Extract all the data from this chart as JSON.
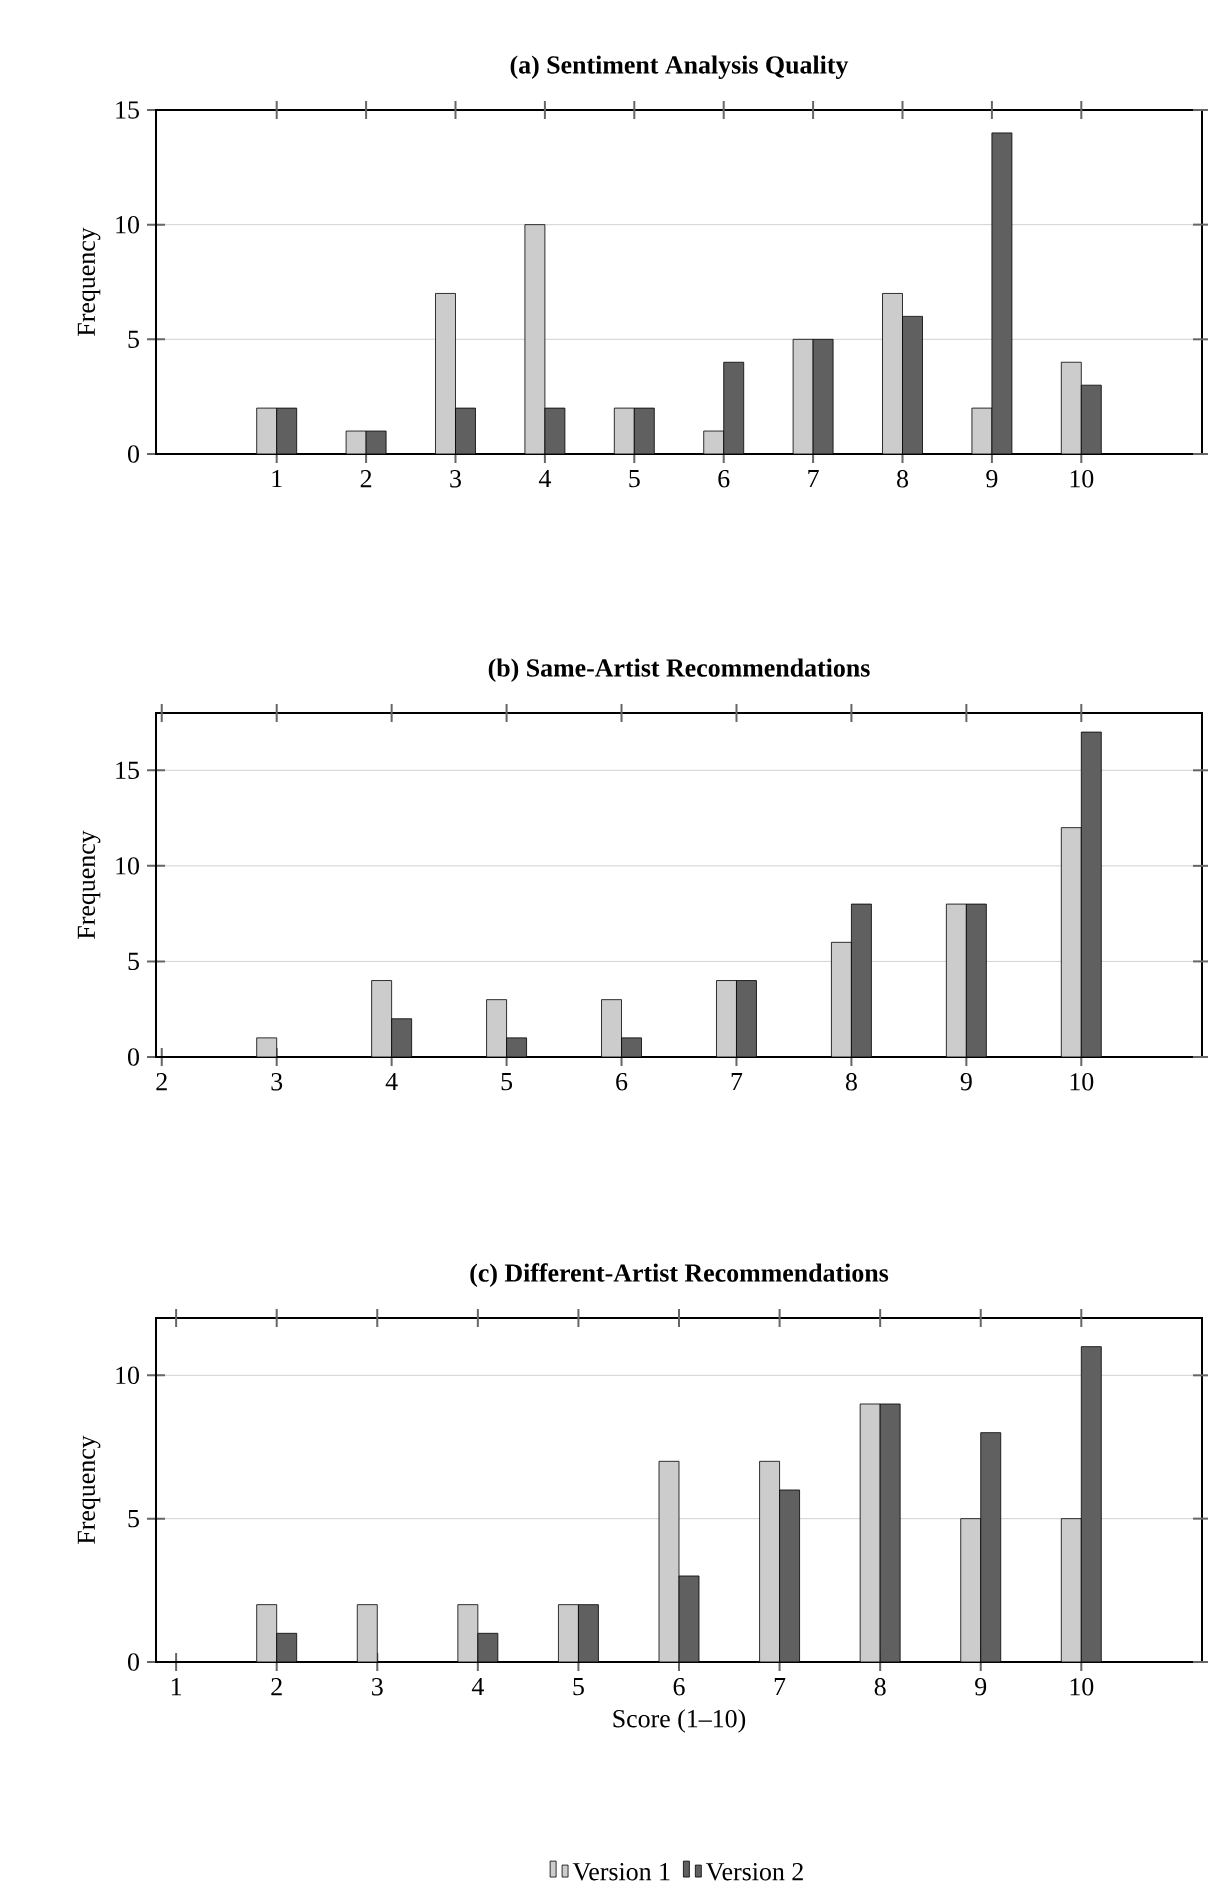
{
  "chart_data": [
    {
      "type": "bar",
      "title": "(a) Sentiment Analysis Quality",
      "ylabel": "Frequency",
      "x": [
        1,
        2,
        3,
        4,
        5,
        6,
        7,
        8,
        9,
        10
      ],
      "xlim": [
        -0.35,
        11.35
      ],
      "xticks": [
        1,
        2,
        3,
        4,
        5,
        6,
        7,
        8,
        9,
        10
      ],
      "ylim": [
        0,
        15
      ],
      "yticks": [
        0,
        5,
        10,
        15
      ],
      "grid": "y",
      "series": [
        {
          "color": "#cccccc",
          "values": [
            2,
            1,
            7,
            10,
            2,
            1,
            5,
            7,
            2,
            4
          ]
        },
        {
          "color": "#606060",
          "values": [
            2,
            1,
            2,
            2,
            2,
            4,
            5,
            6,
            14,
            3
          ]
        }
      ]
    },
    {
      "type": "bar",
      "title": "(b) Same-Artist Recommendations",
      "ylabel": "Frequency",
      "x": [
        3,
        4,
        5,
        6,
        7,
        8,
        9,
        10
      ],
      "xlim": [
        1.95,
        11.05
      ],
      "xticks": [
        2,
        3,
        4,
        5,
        6,
        7,
        8,
        9,
        10
      ],
      "ylim": [
        0,
        18
      ],
      "yticks": [
        0,
        5,
        10,
        15
      ],
      "grid": "y",
      "series": [
        {
          "color": "#cccccc",
          "values": [
            1,
            4,
            3,
            3,
            4,
            6,
            8,
            12
          ]
        },
        {
          "color": "#606060",
          "values": [
            null,
            2,
            1,
            1,
            4,
            8,
            8,
            17
          ]
        }
      ]
    },
    {
      "type": "bar",
      "title": "(c) Different-Artist Recommendations",
      "ylabel": "Frequency",
      "xlabel": "Score (1–10)",
      "x": [
        2,
        3,
        4,
        5,
        6,
        7,
        8,
        9,
        10
      ],
      "xlim": [
        0.8,
        11.2
      ],
      "xticks": [
        1,
        2,
        3,
        4,
        5,
        6,
        7,
        8,
        9,
        10
      ],
      "ylim": [
        0,
        12
      ],
      "yticks": [
        0,
        5,
        10
      ],
      "grid": "y",
      "legend": "bottom",
      "series": [
        {
          "name": "Version 1",
          "color": "#cccccc",
          "values": [
            2,
            2,
            2,
            2,
            7,
            7,
            9,
            5,
            5
          ]
        },
        {
          "name": "Version 2",
          "color": "#606060",
          "values": [
            1,
            null,
            1,
            2,
            3,
            6,
            9,
            8,
            11
          ]
        }
      ]
    }
  ]
}
